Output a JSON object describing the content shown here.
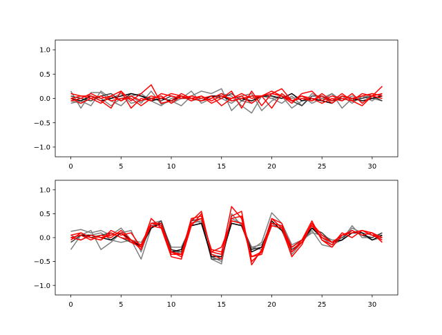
{
  "chart_data": [
    {
      "type": "line",
      "subplot": "top",
      "x": [
        0,
        1,
        2,
        3,
        4,
        5,
        6,
        7,
        8,
        9,
        10,
        11,
        12,
        13,
        14,
        15,
        16,
        17,
        18,
        19,
        20,
        21,
        22,
        23,
        24,
        25,
        26,
        27,
        28,
        29,
        30,
        31
      ],
      "xlim": [
        -1.55,
        32.55
      ],
      "ylim": [
        -1.2,
        1.2
      ],
      "xticks": [
        0,
        5,
        10,
        15,
        20,
        25,
        30
      ],
      "xtick_labels": [
        "0",
        "5",
        "10",
        "15",
        "20",
        "25",
        "30"
      ],
      "yticks": [
        -1.0,
        -0.5,
        0.0,
        0.5,
        1.0
      ],
      "ytick_labels": [
        "−1.0",
        "−0.5",
        "0.0",
        "0.5",
        "1.0"
      ],
      "grid": false,
      "legend": "none",
      "series": [
        {
          "color": "#7f7f7f",
          "values": [
            0.15,
            -0.2,
            0.12,
            0.12,
            -0.05,
            -0.15,
            0.05,
            -0.1,
            0.15,
            -0.12,
            -0.05,
            -0.15,
            0.05,
            0.15,
            0.1,
            0.2,
            -0.25,
            -0.05,
            -0.1,
            0.05,
            0.0,
            -0.1,
            0.05,
            -0.15,
            0.1,
            0.0,
            0.1,
            -0.05,
            0.05,
            0.0,
            0.1,
            0.05
          ]
        },
        {
          "color": "#7f7f7f",
          "values": [
            -0.1,
            -0.05,
            -0.15,
            0.15,
            0.0,
            0.1,
            -0.1,
            -0.05,
            0.0,
            0.05,
            -0.1,
            0.0,
            0.15,
            -0.1,
            0.0,
            0.1,
            0.05,
            -0.15,
            -0.3,
            0.05,
            0.0,
            0.05,
            -0.2,
            -0.05,
            0.0,
            -0.05,
            0.1,
            -0.2,
            0.0,
            0.05,
            -0.05,
            0.1
          ]
        },
        {
          "color": "#7f7f7f",
          "values": [
            -0.05,
            -0.1,
            0.05,
            0.0,
            -0.15,
            0.0,
            0.05,
            0.1,
            -0.05,
            -0.15,
            0.0,
            0.05,
            -0.05,
            0.0,
            0.05,
            0.0,
            -0.1,
            0.05,
            0.1,
            -0.25,
            -0.05,
            0.05,
            0.0,
            0.05,
            -0.1,
            0.0,
            -0.05,
            0.05,
            -0.1,
            0.05,
            0.0,
            -0.05
          ]
        },
        {
          "color": "#3f3f3f",
          "values": [
            0.05,
            0.0,
            -0.05,
            0.05,
            0.1,
            -0.05,
            0.1,
            0.05,
            0.0,
            -0.05,
            0.05,
            0.0,
            0.0,
            -0.05,
            0.05,
            0.0,
            0.1,
            -0.05,
            0.05,
            0.05,
            0.1,
            0.05,
            -0.05,
            -0.15,
            0.05,
            0.05,
            -0.05,
            0.0,
            -0.05,
            0.0,
            0.05,
            -0.05
          ]
        },
        {
          "color": "#000000",
          "values": [
            0.0,
            -0.05,
            0.05,
            -0.05,
            0.0,
            0.05,
            0.1,
            0.05,
            -0.05,
            0.0,
            -0.05,
            0.05,
            0.0,
            -0.05,
            0.05,
            0.05,
            -0.05,
            0.0,
            -0.05,
            0.05,
            0.05,
            0.0,
            0.1,
            -0.05,
            0.0,
            -0.05,
            -0.1,
            0.05,
            0.0,
            -0.05,
            0.0,
            0.05
          ]
        },
        {
          "color": "#ff0000",
          "values": [
            0.1,
            0.05,
            0.0,
            -0.1,
            0.05,
            0.15,
            -0.05,
            0.1,
            0.28,
            -0.1,
            -0.05,
            0.1,
            0.0,
            0.05,
            -0.1,
            0.0,
            0.15,
            -0.2,
            0.15,
            -0.15,
            0.1,
            0.05,
            -0.1,
            0.1,
            0.15,
            -0.05,
            0.05,
            0.0,
            -0.05,
            0.1,
            0.05,
            0.25
          ]
        },
        {
          "color": "#ff0000",
          "values": [
            0.0,
            0.05,
            0.05,
            -0.05,
            -0.2,
            0.15,
            -0.2,
            0.0,
            -0.05,
            0.1,
            0.05,
            0.0,
            0.05,
            0.0,
            0.05,
            -0.15,
            0.0,
            0.1,
            0.0,
            0.05,
            -0.2,
            0.1,
            -0.05,
            0.05,
            0.0,
            -0.1,
            0.0,
            -0.05,
            0.1,
            -0.1,
            0.05,
            0.0
          ]
        },
        {
          "color": "#ff0000",
          "values": [
            -0.05,
            0.0,
            0.1,
            0.0,
            0.05,
            -0.05,
            0.05,
            -0.05,
            0.05,
            0.0,
            0.1,
            0.05,
            -0.05,
            0.05,
            -0.05,
            0.05,
            0.0,
            0.05,
            -0.1,
            0.05,
            0.1,
            0.2,
            -0.05,
            0.0,
            -0.05,
            0.1,
            -0.05,
            0.1,
            -0.05,
            -0.15,
            0.05,
            0.1
          ]
        },
        {
          "color": "#ff0000",
          "values": [
            0.0,
            -0.1,
            0.0,
            0.05,
            -0.05,
            0.0,
            0.0,
            -0.15,
            0.0,
            0.05,
            -0.1,
            0.05,
            0.0,
            -0.05,
            0.0,
            0.1,
            -0.05,
            0.0,
            0.05,
            0.05,
            0.15,
            0.05,
            -0.05,
            0.05,
            -0.05,
            0.05,
            -0.1,
            0.05,
            0.0,
            0.05,
            0.1,
            0.05
          ]
        }
      ]
    },
    {
      "type": "line",
      "subplot": "bottom",
      "x": [
        0,
        1,
        2,
        3,
        4,
        5,
        6,
        7,
        8,
        9,
        10,
        11,
        12,
        13,
        14,
        15,
        16,
        17,
        18,
        19,
        20,
        21,
        22,
        23,
        24,
        25,
        26,
        27,
        28,
        29,
        30,
        31
      ],
      "xlim": [
        -1.55,
        32.55
      ],
      "ylim": [
        -1.2,
        1.2
      ],
      "xticks": [
        0,
        5,
        10,
        15,
        20,
        25,
        30
      ],
      "xtick_labels": [
        "0",
        "5",
        "10",
        "15",
        "20",
        "25",
        "30"
      ],
      "yticks": [
        -1.0,
        -0.5,
        0.0,
        0.5,
        1.0
      ],
      "ytick_labels": [
        "−1.0",
        "−0.5",
        "0.0",
        "0.5",
        "1.0"
      ],
      "grid": false,
      "legend": "none",
      "series": [
        {
          "color": "#7f7f7f",
          "values": [
            0.13,
            0.17,
            0.1,
            0.15,
            0.05,
            0.2,
            -0.05,
            -0.45,
            0.2,
            0.3,
            -0.25,
            -0.35,
            0.4,
            0.3,
            -0.4,
            -0.5,
            0.4,
            0.3,
            -0.25,
            -0.1,
            0.52,
            0.3,
            -0.15,
            -0.05,
            0.25,
            0.0,
            -0.15,
            -0.05,
            0.25,
            0.0,
            0.0,
            0.1
          ]
        },
        {
          "color": "#7f7f7f",
          "values": [
            -0.25,
            0.05,
            0.15,
            -0.25,
            -0.1,
            0.1,
            0.15,
            -0.3,
            0.3,
            0.35,
            -0.3,
            -0.3,
            0.3,
            0.35,
            -0.45,
            -0.55,
            0.5,
            0.25,
            -0.2,
            -0.25,
            0.3,
            0.15,
            -0.35,
            -0.1,
            0.15,
            -0.15,
            -0.2,
            0.05,
            0.15,
            0.05,
            -0.05,
            0.0
          ]
        },
        {
          "color": "#7f7f7f",
          "values": [
            0.05,
            -0.05,
            0.05,
            0.1,
            -0.05,
            -0.1,
            -0.05,
            -0.1,
            0.25,
            0.3,
            -0.2,
            -0.2,
            0.25,
            0.3,
            -0.35,
            -0.4,
            0.3,
            0.25,
            -0.2,
            -0.15,
            0.25,
            0.2,
            -0.2,
            -0.05,
            0.1,
            0.05,
            -0.05,
            -0.05,
            0.2,
            0.1,
            0.05,
            0.05
          ]
        },
        {
          "color": "#3f3f3f",
          "values": [
            -0.1,
            0.05,
            0.0,
            0.05,
            0.1,
            0.0,
            -0.1,
            -0.15,
            0.2,
            0.35,
            -0.25,
            -0.3,
            0.35,
            0.4,
            -0.45,
            -0.45,
            0.35,
            0.3,
            -0.25,
            -0.2,
            0.3,
            0.25,
            -0.25,
            -0.1,
            0.2,
            0.1,
            -0.1,
            0.0,
            0.15,
            0.05,
            0.0,
            0.1
          ]
        },
        {
          "color": "#000000",
          "values": [
            0.0,
            0.05,
            0.05,
            0.0,
            -0.05,
            0.1,
            -0.05,
            -0.2,
            0.2,
            0.3,
            -0.3,
            -0.25,
            0.25,
            0.3,
            -0.4,
            -0.4,
            0.3,
            0.25,
            -0.3,
            -0.2,
            0.35,
            0.15,
            -0.2,
            -0.05,
            0.2,
            0.0,
            -0.1,
            -0.05,
            0.1,
            0.1,
            -0.05,
            0.05
          ]
        },
        {
          "color": "#ff0000",
          "values": [
            0.05,
            0.1,
            0.0,
            -0.05,
            0.15,
            0.05,
            0.1,
            -0.2,
            0.4,
            0.2,
            -0.4,
            -0.45,
            0.25,
            0.5,
            -0.3,
            -0.35,
            0.65,
            0.4,
            -0.5,
            -0.3,
            0.4,
            0.2,
            -0.4,
            -0.15,
            0.3,
            -0.05,
            -0.15,
            0.1,
            0.0,
            0.15,
            0.1,
            -0.1
          ]
        },
        {
          "color": "#ff0000",
          "values": [
            0.0,
            0.05,
            -0.05,
            0.05,
            0.0,
            0.15,
            -0.05,
            -0.15,
            0.3,
            0.25,
            -0.35,
            -0.35,
            0.35,
            0.55,
            -0.35,
            -0.45,
            0.45,
            0.55,
            -0.57,
            -0.25,
            0.4,
            0.3,
            -0.3,
            -0.05,
            0.35,
            -0.05,
            -0.2,
            0.05,
            0.15,
            0.05,
            0.1,
            0.0
          ]
        },
        {
          "color": "#ff0000",
          "values": [
            -0.05,
            0.1,
            0.0,
            -0.05,
            0.1,
            0.0,
            -0.05,
            -0.25,
            0.3,
            0.3,
            -0.3,
            -0.4,
            0.3,
            0.4,
            -0.25,
            -0.3,
            0.4,
            0.45,
            -0.4,
            -0.35,
            0.3,
            0.25,
            -0.2,
            -0.05,
            0.25,
            0.0,
            -0.1,
            0.05,
            0.1,
            0.15,
            0.05,
            0.0
          ]
        },
        {
          "color": "#ff0000",
          "values": [
            0.0,
            -0.05,
            0.05,
            0.0,
            0.05,
            0.1,
            -0.1,
            -0.2,
            0.25,
            0.2,
            -0.3,
            -0.35,
            0.4,
            0.45,
            -0.3,
            -0.2,
            0.35,
            0.3,
            -0.4,
            -0.3,
            0.25,
            0.2,
            -0.3,
            -0.1,
            0.3,
            0.05,
            -0.1,
            0.05,
            0.1,
            0.15,
            0.05,
            -0.05
          ]
        }
      ]
    }
  ]
}
